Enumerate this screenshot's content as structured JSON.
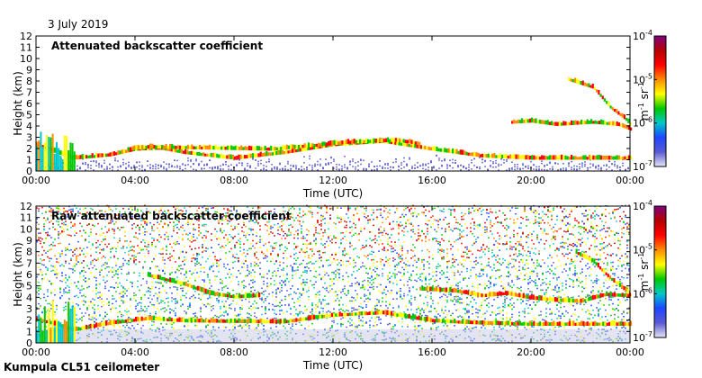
{
  "header": {
    "date": "3 July 2019"
  },
  "footer": {
    "station": "Kumpula CL51 ceilometer"
  },
  "colors": {
    "colorbar_stops": [
      "#e6e6f5",
      "#5a5ad2",
      "#1e46ff",
      "#00c8c8",
      "#00c800",
      "#ffff00",
      "#ff8c00",
      "#ff0000",
      "#b40000",
      "#800080"
    ],
    "background_clean": "#ffffff",
    "noise": "#4060d0"
  },
  "chart_data": [
    {
      "type": "heatmap",
      "title": "Attenuated backscatter coefficient",
      "xlabel": "Time (UTC)",
      "ylabel": "Height (km)",
      "xlim": [
        0,
        24
      ],
      "ylim": [
        0,
        12
      ],
      "x_ticks": [
        "00:00",
        "04:00",
        "08:00",
        "12:00",
        "16:00",
        "20:00",
        "00:00"
      ],
      "y_ticks": [
        "0",
        "1",
        "2",
        "3",
        "4",
        "5",
        "6",
        "7",
        "8",
        "9",
        "10",
        "11",
        "12"
      ],
      "colorbar": {
        "label_base": "m",
        "label_exp1": "-1",
        "label_mid": " sr",
        "label_exp2": "-1",
        "ticks": [
          {
            "base": "10",
            "exp": "-4"
          },
          {
            "base": "10",
            "exp": "-5"
          },
          {
            "base": "10",
            "exp": "-6"
          },
          {
            "base": "10",
            "exp": "-7"
          }
        ]
      },
      "layers": [
        {
          "name": "boundary layer",
          "points": [
            [
              0,
              2.2
            ],
            [
              1.5,
              1.0
            ],
            [
              3,
              1.3
            ],
            [
              4,
              1.8
            ],
            [
              5,
              1.9
            ],
            [
              6,
              1.5
            ],
            [
              8,
              1.0
            ],
            [
              10,
              1.5
            ],
            [
              12,
              2.2
            ],
            [
              14,
              2.5
            ],
            [
              16,
              1.8
            ],
            [
              18,
              1.2
            ],
            [
              20,
              1.0
            ],
            [
              24,
              1.0
            ]
          ]
        },
        {
          "name": "cloud layer",
          "points": [
            [
              3.7,
              1.8
            ],
            [
              4.5,
              2.0
            ],
            [
              9.5,
              1.8
            ],
            [
              11,
              2.1
            ],
            [
              12.5,
              2.4
            ],
            [
              14.5,
              2.6
            ],
            [
              15.5,
              2.3
            ]
          ]
        },
        {
          "name": "elevated cloud",
          "points": [
            [
              19.2,
              4.2
            ],
            [
              20,
              4.3
            ],
            [
              21,
              4.0
            ],
            [
              22.5,
              4.2
            ],
            [
              23.5,
              4.0
            ],
            [
              24,
              3.6
            ]
          ]
        },
        {
          "name": "descending layer",
          "points": [
            [
              21.5,
              8.0
            ],
            [
              22.5,
              7.3
            ],
            [
              23.2,
              5.5
            ],
            [
              23.8,
              4.5
            ],
            [
              24,
              4.0
            ]
          ]
        }
      ]
    },
    {
      "type": "heatmap",
      "title": "Raw attenuated backscatter coefficient",
      "xlabel": "Time (UTC)",
      "ylabel": "Height (km)",
      "xlim": [
        0,
        24
      ],
      "ylim": [
        0,
        12
      ],
      "x_ticks": [
        "00:00",
        "04:00",
        "08:00",
        "12:00",
        "16:00",
        "20:00",
        "00:00"
      ],
      "y_ticks": [
        "0",
        "1",
        "2",
        "3",
        "4",
        "5",
        "6",
        "7",
        "8",
        "9",
        "10",
        "11",
        "12"
      ],
      "colorbar": {
        "label_base": "m",
        "label_exp1": "-1",
        "label_mid": " sr",
        "label_exp2": "-1",
        "ticks": [
          {
            "base": "10",
            "exp": "-4"
          },
          {
            "base": "10",
            "exp": "-5"
          },
          {
            "base": "10",
            "exp": "-6"
          },
          {
            "base": "10",
            "exp": "-7"
          }
        ]
      },
      "layers": [
        {
          "name": "residual layer",
          "points": [
            [
              4.5,
              5.8
            ],
            [
              6,
              5.0
            ],
            [
              7,
              4.2
            ],
            [
              8,
              3.9
            ],
            [
              9,
              4.0
            ]
          ]
        },
        {
          "name": "boundary layer",
          "points": [
            [
              0,
              2.0
            ],
            [
              1.5,
              1.0
            ],
            [
              3,
              1.6
            ],
            [
              4.5,
              2.0
            ],
            [
              6,
              1.8
            ],
            [
              10,
              1.7
            ],
            [
              12,
              2.3
            ],
            [
              14,
              2.5
            ],
            [
              16,
              1.8
            ],
            [
              18,
              1.6
            ],
            [
              20,
              1.5
            ],
            [
              24,
              1.5
            ]
          ]
        },
        {
          "name": "elevated aerosol",
          "points": [
            [
              15.5,
              4.6
            ],
            [
              17,
              4.4
            ],
            [
              18,
              4.0
            ],
            [
              19,
              4.2
            ],
            [
              20,
              3.8
            ],
            [
              21,
              3.6
            ],
            [
              22,
              3.5
            ],
            [
              23,
              4.1
            ],
            [
              24,
              4.0
            ]
          ]
        },
        {
          "name": "descending layer",
          "points": [
            [
              21.8,
              7.8
            ],
            [
              22.5,
              7.0
            ],
            [
              23.2,
              5.5
            ],
            [
              23.8,
              4.5
            ],
            [
              24,
              4.0
            ]
          ]
        }
      ]
    }
  ]
}
